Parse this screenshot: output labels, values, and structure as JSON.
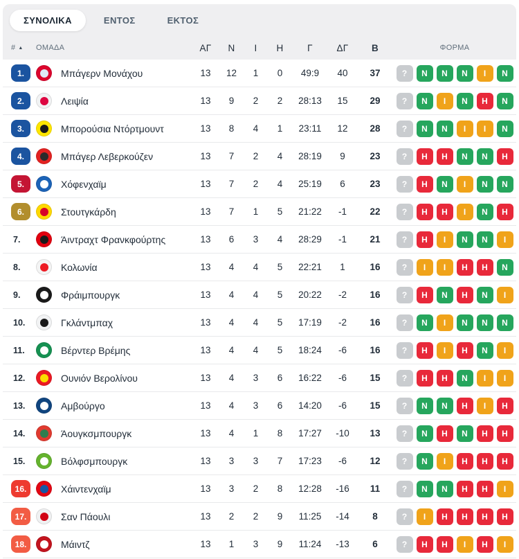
{
  "tabs": [
    {
      "label": "ΣΥΝΟΛΙΚΑ",
      "active": true
    },
    {
      "label": "ΕΝΤΟΣ",
      "active": false
    },
    {
      "label": "ΕΚΤΟΣ",
      "active": false
    }
  ],
  "table": {
    "headers": {
      "rank": "#",
      "sort_icon": "▲",
      "team": "ΟΜΑΔΑ",
      "played": "ΑΓ",
      "wins": "Ν",
      "draws": "Ι",
      "losses": "Η",
      "goals": "Γ",
      "goal_diff": "ΔΓ",
      "points": "Β",
      "form": "ΦΟΡΜΑ"
    },
    "rows": [
      {
        "rank": "1.",
        "zone": "ucl",
        "team": "Μπάγερν Μονάχου",
        "logo": {
          "bg": "#dc052d",
          "core": "#dfe9f5"
        },
        "played": "13",
        "wins": "12",
        "draws": "1",
        "losses": "0",
        "goals": "49:9",
        "goal_diff": "40",
        "points": "37",
        "form": [
          "?",
          "N",
          "N",
          "N",
          "I",
          "N"
        ]
      },
      {
        "rank": "2.",
        "zone": "ucl",
        "team": "Λειψία",
        "logo": {
          "bg": "#f2f3f4",
          "core": "#dd0741"
        },
        "played": "13",
        "wins": "9",
        "draws": "2",
        "losses": "2",
        "goals": "28:13",
        "goal_diff": "15",
        "points": "29",
        "form": [
          "?",
          "N",
          "I",
          "N",
          "H",
          "N"
        ]
      },
      {
        "rank": "3.",
        "zone": "ucl",
        "team": "Μπορούσια Ντόρτμουντ",
        "logo": {
          "bg": "#ffe600",
          "core": "#1a1a1a"
        },
        "played": "13",
        "wins": "8",
        "draws": "4",
        "losses": "1",
        "goals": "23:11",
        "goal_diff": "12",
        "points": "28",
        "form": [
          "?",
          "N",
          "N",
          "I",
          "I",
          "N"
        ]
      },
      {
        "rank": "4.",
        "zone": "ucl",
        "team": "Μπάγερ Λεβερκούζεν",
        "logo": {
          "bg": "#e32221",
          "core": "#2b2b2b"
        },
        "played": "13",
        "wins": "7",
        "draws": "2",
        "losses": "4",
        "goals": "28:19",
        "goal_diff": "9",
        "points": "23",
        "form": [
          "?",
          "H",
          "H",
          "N",
          "N",
          "H"
        ]
      },
      {
        "rank": "5.",
        "zone": "uel",
        "team": "Χόφενχαϊμ",
        "logo": {
          "bg": "#1c63b7",
          "core": "#ffffff"
        },
        "played": "13",
        "wins": "7",
        "draws": "2",
        "losses": "4",
        "goals": "25:19",
        "goal_diff": "6",
        "points": "23",
        "form": [
          "?",
          "H",
          "N",
          "I",
          "N",
          "N"
        ]
      },
      {
        "rank": "6.",
        "zone": "conf",
        "team": "Στουτγκάρδη",
        "logo": {
          "bg": "#ffd800",
          "core": "#d70029"
        },
        "played": "13",
        "wins": "7",
        "draws": "1",
        "losses": "5",
        "goals": "21:22",
        "goal_diff": "-1",
        "points": "22",
        "form": [
          "?",
          "H",
          "H",
          "I",
          "N",
          "H"
        ]
      },
      {
        "rank": "7.",
        "zone": "none",
        "team": "Άιντραχτ Φρανκφούρτης",
        "logo": {
          "bg": "#e1000f",
          "core": "#1a1a1a"
        },
        "played": "13",
        "wins": "6",
        "draws": "3",
        "losses": "4",
        "goals": "28:29",
        "goal_diff": "-1",
        "points": "21",
        "form": [
          "?",
          "H",
          "I",
          "N",
          "N",
          "I"
        ]
      },
      {
        "rank": "8.",
        "zone": "none",
        "team": "Κολωνία",
        "logo": {
          "bg": "#f4f4f4",
          "core": "#ed1c24"
        },
        "played": "13",
        "wins": "4",
        "draws": "4",
        "losses": "5",
        "goals": "22:21",
        "goal_diff": "1",
        "points": "16",
        "form": [
          "?",
          "I",
          "I",
          "H",
          "H",
          "N"
        ]
      },
      {
        "rank": "9.",
        "zone": "none",
        "team": "Φράιμπουργκ",
        "logo": {
          "bg": "#1a1a1a",
          "core": "#ffffff"
        },
        "played": "13",
        "wins": "4",
        "draws": "4",
        "losses": "5",
        "goals": "20:22",
        "goal_diff": "-2",
        "points": "16",
        "form": [
          "?",
          "H",
          "N",
          "H",
          "N",
          "I"
        ]
      },
      {
        "rank": "10.",
        "zone": "none",
        "team": "Γκλάντμπαχ",
        "logo": {
          "bg": "#f2f3f4",
          "core": "#1a1a1a"
        },
        "played": "13",
        "wins": "4",
        "draws": "4",
        "losses": "5",
        "goals": "17:19",
        "goal_diff": "-2",
        "points": "16",
        "form": [
          "?",
          "N",
          "I",
          "N",
          "N",
          "N"
        ]
      },
      {
        "rank": "11.",
        "zone": "none",
        "team": "Βέρντερ Βρέμης",
        "logo": {
          "bg": "#169152",
          "core": "#ffffff"
        },
        "played": "13",
        "wins": "4",
        "draws": "4",
        "losses": "5",
        "goals": "18:24",
        "goal_diff": "-6",
        "points": "16",
        "form": [
          "?",
          "H",
          "I",
          "H",
          "N",
          "I"
        ]
      },
      {
        "rank": "12.",
        "zone": "none",
        "team": "Ουνιόν Βερολίνου",
        "logo": {
          "bg": "#eb1923",
          "core": "#fadd00"
        },
        "played": "13",
        "wins": "4",
        "draws": "3",
        "losses": "6",
        "goals": "16:22",
        "goal_diff": "-6",
        "points": "15",
        "form": [
          "?",
          "H",
          "H",
          "N",
          "I",
          "I"
        ]
      },
      {
        "rank": "13.",
        "zone": "none",
        "team": "Αμβούργο",
        "logo": {
          "bg": "#10457f",
          "core": "#ffffff"
        },
        "played": "13",
        "wins": "4",
        "draws": "3",
        "losses": "6",
        "goals": "14:20",
        "goal_diff": "-6",
        "points": "15",
        "form": [
          "?",
          "N",
          "N",
          "H",
          "I",
          "H"
        ]
      },
      {
        "rank": "14.",
        "zone": "none",
        "team": "Άουγκσμπουργκ",
        "logo": {
          "bg": "#e03a2f",
          "core": "#2f7d4f"
        },
        "played": "13",
        "wins": "4",
        "draws": "1",
        "losses": "8",
        "goals": "17:27",
        "goal_diff": "-10",
        "points": "13",
        "form": [
          "?",
          "N",
          "H",
          "N",
          "H",
          "H"
        ]
      },
      {
        "rank": "15.",
        "zone": "none",
        "team": "Βόλφσμπουργκ",
        "logo": {
          "bg": "#65b32e",
          "core": "#ffffff"
        },
        "played": "13",
        "wins": "3",
        "draws": "3",
        "losses": "7",
        "goals": "17:23",
        "goal_diff": "-6",
        "points": "12",
        "form": [
          "?",
          "N",
          "I",
          "H",
          "H",
          "H"
        ]
      },
      {
        "rank": "16.",
        "zone": "rel_po",
        "team": "Χάιντενχαϊμ",
        "logo": {
          "bg": "#e30613",
          "core": "#1557a5"
        },
        "played": "13",
        "wins": "3",
        "draws": "2",
        "losses": "8",
        "goals": "12:28",
        "goal_diff": "-16",
        "points": "11",
        "form": [
          "?",
          "N",
          "N",
          "H",
          "H",
          "I"
        ]
      },
      {
        "rank": "17.",
        "zone": "rel",
        "team": "Σαν Πάουλι",
        "logo": {
          "bg": "#f0f1f2",
          "core": "#d10214"
        },
        "played": "13",
        "wins": "2",
        "draws": "2",
        "losses": "9",
        "goals": "11:25",
        "goal_diff": "-14",
        "points": "8",
        "form": [
          "?",
          "I",
          "H",
          "H",
          "H",
          "H"
        ]
      },
      {
        "rank": "18.",
        "zone": "rel",
        "team": "Μάιντζ",
        "logo": {
          "bg": "#c3141e",
          "core": "#ffffff"
        },
        "played": "13",
        "wins": "1",
        "draws": "3",
        "losses": "9",
        "goals": "11:24",
        "goal_diff": "-13",
        "points": "6",
        "form": [
          "?",
          "H",
          "H",
          "I",
          "H",
          "I"
        ]
      }
    ]
  },
  "colors": {
    "zone_ucl": "#1b54a0",
    "zone_uel": "#c41534",
    "zone_conf": "#b28e2d",
    "zone_rel_po": "#ee3b30",
    "zone_rel": "#f25c44",
    "form_win": "#26a65d",
    "form_draw": "#f0a31a",
    "form_loss": "#e8293a",
    "form_unknown": "#c9cccf"
  }
}
